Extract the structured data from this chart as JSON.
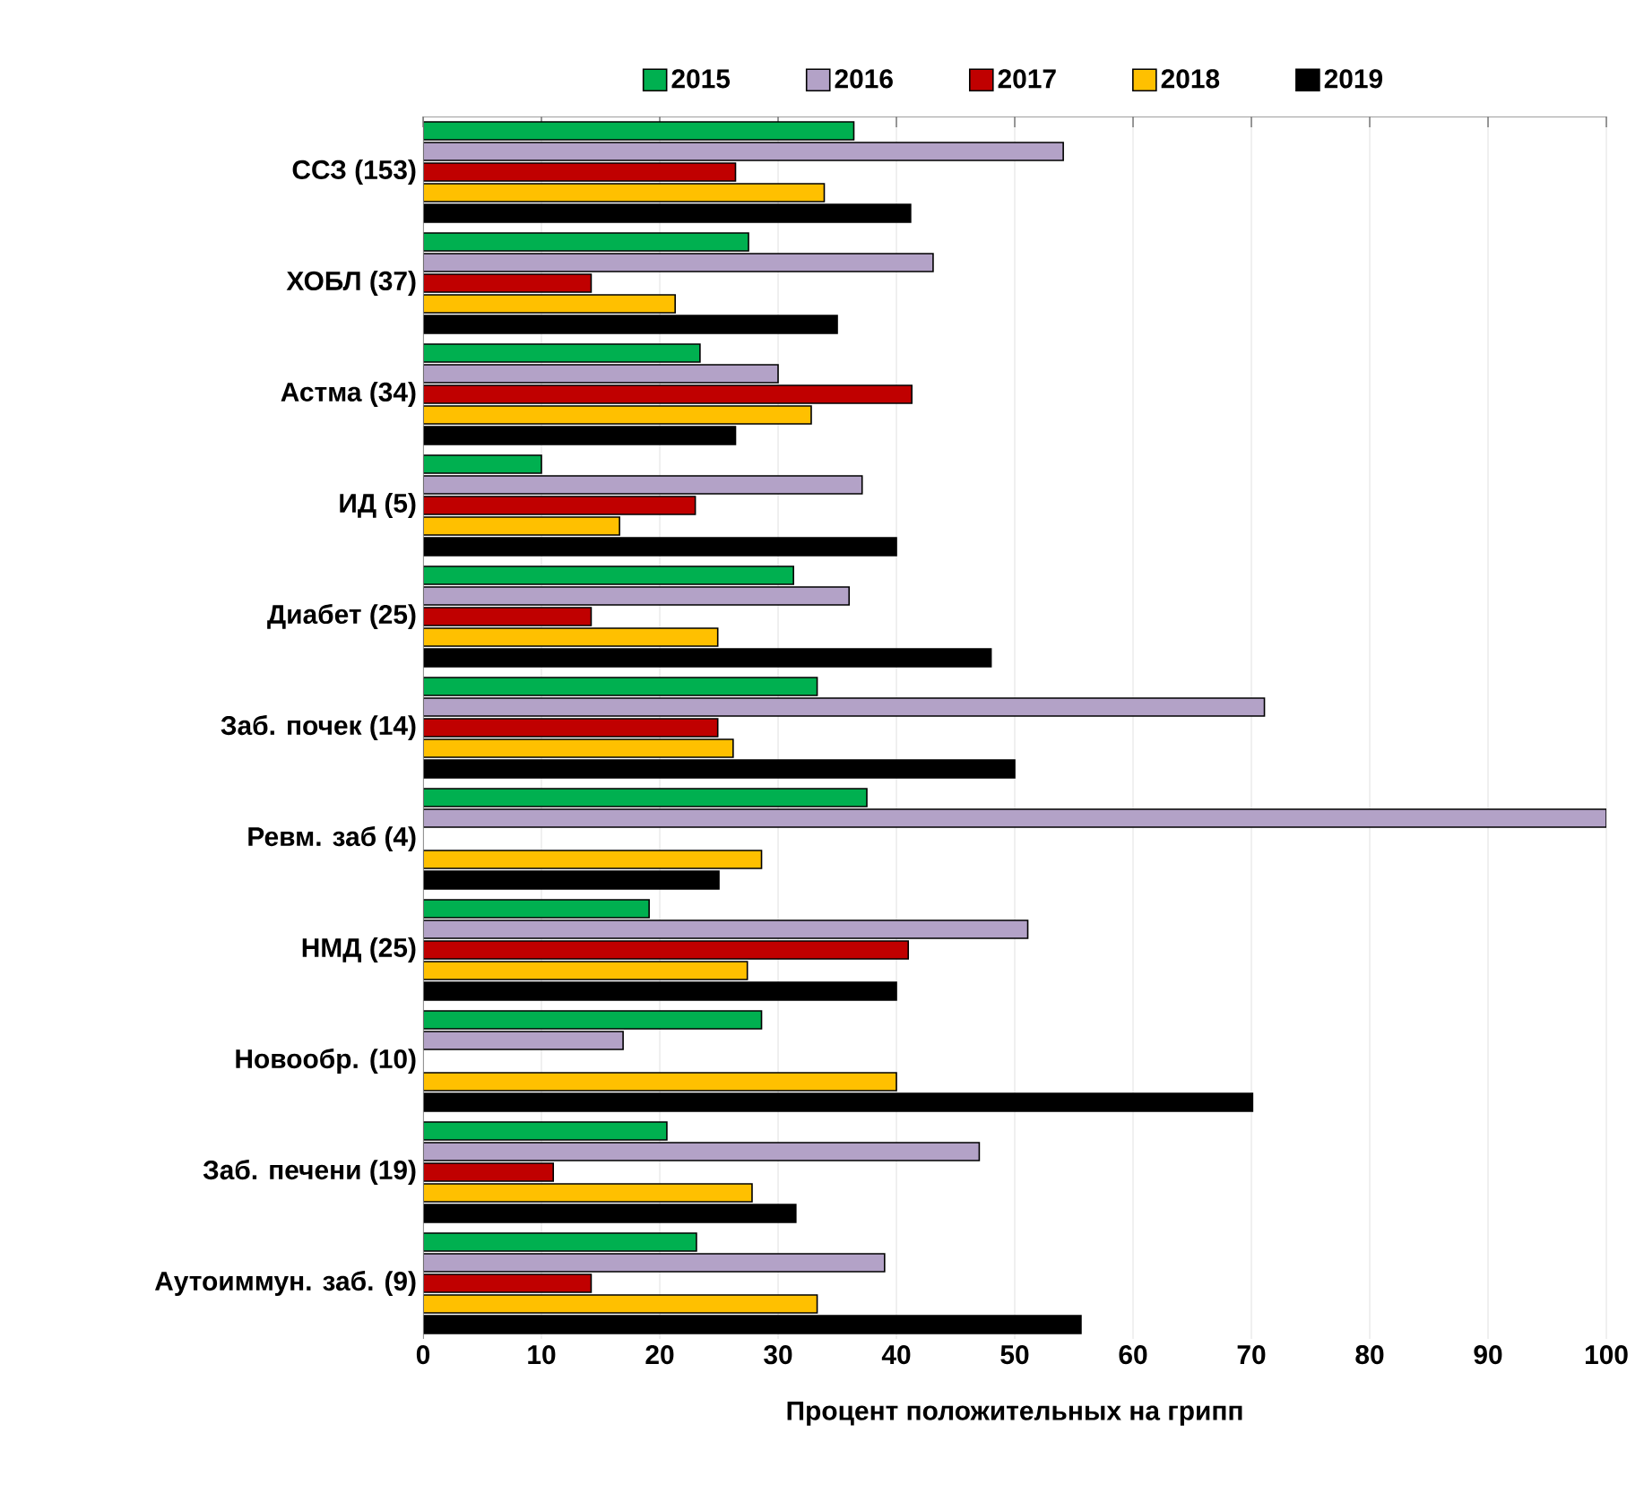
{
  "chart_data": {
    "type": "bar",
    "orientation": "horizontal",
    "xlabel": "Процент положительных на грипп",
    "categories": [
      "ССЗ (153)",
      "ХОБЛ (37)",
      "Астма (34)",
      "ИД (5)",
      "Диабет (25)",
      "Заб. почек (14)",
      "Ревм. заб (4)",
      "НМД (25)",
      "Новообр. (10)",
      "Заб. печени (19)",
      "Аутоиммун. заб. (9)"
    ],
    "series": [
      {
        "name": "2015",
        "color": "#00b050",
        "values": [
          36.4,
          27.5,
          23.4,
          10.0,
          31.3,
          33.3,
          37.5,
          19.1,
          28.6,
          20.6,
          23.1
        ]
      },
      {
        "name": "2016",
        "color": "#b3a2c7",
        "values": [
          54.1,
          43.1,
          30.0,
          37.1,
          36.0,
          71.1,
          100,
          51.1,
          16.9,
          47.0,
          39.0
        ]
      },
      {
        "name": "2017",
        "color": "#c00000",
        "values": [
          26.4,
          14.2,
          41.3,
          23.0,
          14.2,
          24.9,
          null,
          41.0,
          null,
          11.0,
          14.2
        ]
      },
      {
        "name": "2018",
        "color": "#ffc000",
        "values": [
          33.9,
          21.3,
          32.8,
          16.6,
          24.9,
          26.2,
          28.6,
          27.4,
          40.0,
          27.8,
          33.3
        ]
      },
      {
        "name": "2019",
        "color": "#000000",
        "values": [
          41.2,
          35.0,
          26.4,
          40.0,
          48.0,
          50.0,
          25.0,
          40.0,
          70.1,
          31.5,
          55.6
        ]
      }
    ],
    "xlim": [
      0,
      100
    ],
    "xticks": [
      0,
      10,
      20,
      30,
      40,
      50,
      60,
      70,
      80,
      90,
      100
    ],
    "grid": "x",
    "legend": "top"
  }
}
